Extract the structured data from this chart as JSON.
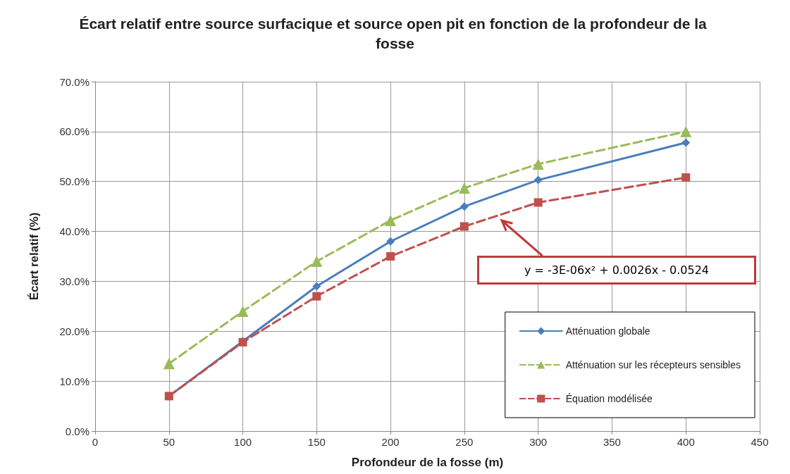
{
  "chart_data": {
    "type": "line",
    "title": "Écart relatif entre source surfacique et source open pit en fonction de la profondeur de la fosse",
    "xlabel": "Profondeur de la fosse (m)",
    "ylabel": "Écart relatif (%)",
    "x": [
      50,
      100,
      150,
      200,
      250,
      300,
      400
    ],
    "series": [
      {
        "name": "Atténuation globale",
        "color": "#4a7ebb",
        "marker": "diamond",
        "line_style": "solid",
        "values": [
          0.07,
          0.18,
          0.29,
          0.38,
          0.45,
          0.503,
          0.578
        ]
      },
      {
        "name": "Atténuation sur les récepteurs sensibles",
        "color": "#9bbb59",
        "marker": "triangle",
        "line_style": "dashed",
        "values": [
          0.135,
          0.24,
          0.34,
          0.422,
          0.487,
          0.535,
          0.6
        ]
      },
      {
        "name": "Équation modélisée",
        "color": "#c0504d",
        "marker": "square",
        "line_style": "dashed",
        "values": [
          0.07,
          0.178,
          0.27,
          0.35,
          0.41,
          0.458,
          0.508
        ]
      }
    ],
    "xlim": [
      0,
      450
    ],
    "xticks": [
      0,
      50,
      100,
      150,
      200,
      250,
      300,
      350,
      400,
      450
    ],
    "ylim": [
      0,
      0.7
    ],
    "yticks": [
      {
        "value": 0,
        "label": "0.0%"
      },
      {
        "value": 0.1,
        "label": "10.0%"
      },
      {
        "value": 0.2,
        "label": "20.0%"
      },
      {
        "value": 0.3,
        "label": "30.0%"
      },
      {
        "value": 0.4,
        "label": "40.0%"
      },
      {
        "value": 0.5,
        "label": "50.0%"
      },
      {
        "value": 0.6,
        "label": "60.0%"
      },
      {
        "value": 0.7,
        "label": "70.0%"
      }
    ],
    "grid": true,
    "legend": "bottom right",
    "annotations": [
      "y = -3E-06x² + 0.0026x - 0.0524"
    ]
  }
}
